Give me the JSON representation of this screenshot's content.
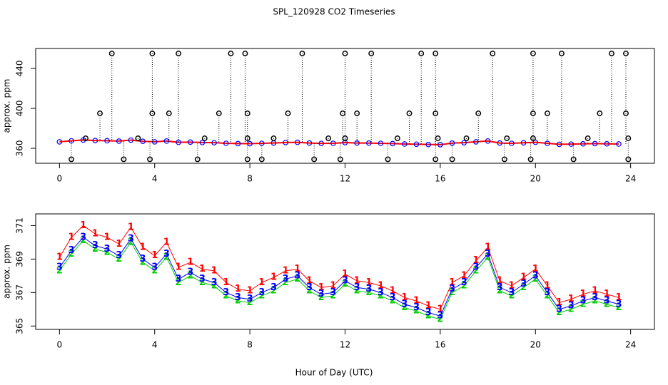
{
  "chart_data": [
    {
      "type": "line",
      "title": "SPL_120928  CO2 Timeseries",
      "ylabel": "approx. ppm",
      "xlim": [
        -1,
        25
      ],
      "xticks": [
        0,
        4,
        8,
        12,
        16,
        20,
        24
      ],
      "ylim": [
        345,
        460
      ],
      "yticks": [
        360,
        400,
        440
      ],
      "x": [
        0,
        0.5,
        1,
        1.5,
        2,
        2.5,
        3,
        3.5,
        4,
        4.5,
        5,
        5.5,
        6,
        6.5,
        7,
        7.5,
        8,
        8.5,
        9,
        9.5,
        10,
        10.5,
        11,
        11.5,
        12,
        12.5,
        13,
        13.5,
        14,
        14.5,
        15,
        15.5,
        16,
        16.5,
        17,
        17.5,
        18,
        18.5,
        19,
        19.5,
        20,
        20.5,
        21,
        21.5,
        22,
        22.5,
        23,
        23.5
      ],
      "series": [
        {
          "color": "#0000ff",
          "line_color": "#ff0000",
          "values": [
            366.5,
            367.5,
            368.3,
            367.8,
            367.6,
            367.2,
            368.2,
            367,
            366.5,
            367.3,
            366,
            366.2,
            365.8,
            365.6,
            365,
            364.7,
            364.6,
            365,
            365.3,
            365.8,
            366,
            365.3,
            364.9,
            365,
            365.7,
            365.3,
            365.2,
            365,
            364.7,
            364.3,
            364.1,
            363.8,
            363.6,
            365.2,
            365.6,
            366.5,
            367.3,
            365.3,
            365,
            365.5,
            366,
            365,
            364,
            364.2,
            364.5,
            364.7,
            364.5,
            364.3
          ]
        }
      ],
      "points": {
        "color": "#000000",
        "x": [
          2.2,
          3.9,
          5.0,
          7.2,
          7.8,
          10.2,
          12.0,
          13.1,
          15.2,
          15.8,
          18.2,
          19.9,
          21.1,
          23.2,
          23.8,
          1.7,
          3.9,
          4.6,
          6.7,
          7.9,
          9.6,
          11.9,
          12.5,
          14.7,
          15.8,
          17.6,
          19.9,
          20.5,
          22.7,
          23.8,
          1.1,
          3.3,
          6.1,
          7.9,
          9.0,
          11.3,
          12.0,
          14.2,
          15.9,
          17.1,
          18.8,
          19.9,
          22.2,
          23.9,
          0.5,
          2.7,
          3.8,
          5.8,
          7.9,
          8.5,
          10.7,
          11.8,
          13.8,
          15.8,
          16.5,
          18.7,
          19.8,
          21.6,
          23.9
        ],
        "values": [
          455,
          455,
          455,
          455,
          455,
          455,
          455,
          455,
          455,
          455,
          455,
          455,
          455,
          455,
          455,
          395,
          395,
          395,
          395,
          395,
          395,
          395,
          395,
          395,
          395,
          395,
          395,
          395,
          395,
          395,
          370,
          370,
          370,
          370,
          370,
          370,
          370,
          370,
          370,
          370,
          370,
          370,
          370,
          370,
          349,
          349,
          349,
          349,
          349,
          349,
          349,
          349,
          349,
          349,
          349,
          349,
          349,
          349,
          349
        ]
      }
    },
    {
      "type": "line",
      "ylabel": "approx. ppm",
      "xlabel": "Hour of Day (UTC)",
      "xlim": [
        -1,
        25
      ],
      "xticks": [
        0,
        4,
        8,
        12,
        16,
        20,
        24
      ],
      "ylim": [
        364.8,
        371.7
      ],
      "yticks": [
        365,
        367,
        369,
        371
      ],
      "x": [
        0,
        0.5,
        1,
        1.5,
        2,
        2.5,
        3,
        3.5,
        4,
        4.5,
        5,
        5.5,
        6,
        6.5,
        7,
        7.5,
        8,
        8.5,
        9,
        9.5,
        10,
        10.5,
        11,
        11.5,
        12,
        12.5,
        13,
        13.5,
        14,
        14.5,
        15,
        15.5,
        16,
        16.5,
        17,
        17.5,
        18,
        18.5,
        19,
        19.5,
        20,
        20.5,
        21,
        21.5,
        22,
        22.5,
        23,
        23.5
      ],
      "series": [
        {
          "marker": "1",
          "color": "#ff0000",
          "values": [
            369.1,
            370.3,
            371.0,
            370.5,
            370.3,
            369.9,
            370.9,
            369.7,
            369.2,
            370.0,
            368.5,
            368.8,
            368.4,
            368.3,
            367.6,
            367.2,
            367.1,
            367.6,
            367.9,
            368.3,
            368.4,
            367.7,
            367.3,
            367.4,
            368.1,
            367.7,
            367.6,
            367.4,
            367.1,
            366.7,
            366.5,
            366.2,
            366.0,
            367.6,
            368.0,
            368.9,
            369.7,
            367.7,
            367.4,
            367.9,
            368.4,
            367.4,
            366.4,
            366.6,
            366.9,
            367.1,
            366.9,
            366.7
          ]
        },
        {
          "marker": "2",
          "color": "#00cc00",
          "values": [
            368.3,
            369.3,
            370.1,
            369.6,
            369.4,
            369.0,
            370.0,
            368.8,
            368.3,
            369.1,
            367.6,
            368.0,
            367.6,
            367.4,
            366.8,
            366.5,
            366.4,
            366.8,
            367.1,
            367.6,
            367.8,
            367.1,
            366.7,
            366.8,
            367.5,
            367.1,
            367.0,
            366.8,
            366.5,
            366.1,
            365.9,
            365.6,
            365.4,
            367.0,
            367.4,
            368.3,
            369.1,
            367.1,
            366.8,
            367.3,
            367.8,
            366.8,
            365.8,
            366.0,
            366.3,
            366.5,
            366.3,
            366.1
          ]
        },
        {
          "marker": "3",
          "color": "#0000ff",
          "values": [
            368.5,
            369.5,
            370.3,
            369.8,
            369.6,
            369.2,
            370.2,
            369.0,
            368.5,
            369.3,
            367.8,
            368.2,
            367.8,
            367.6,
            367.0,
            366.7,
            366.6,
            367.0,
            367.3,
            367.8,
            368.0,
            367.3,
            366.9,
            367.0,
            367.7,
            367.3,
            367.2,
            367.0,
            366.7,
            366.3,
            366.1,
            365.8,
            365.6,
            367.2,
            367.6,
            368.5,
            369.3,
            367.3,
            367.0,
            367.5,
            368.0,
            367.0,
            366.0,
            366.2,
            366.5,
            366.7,
            366.5,
            366.3
          ]
        }
      ]
    }
  ]
}
